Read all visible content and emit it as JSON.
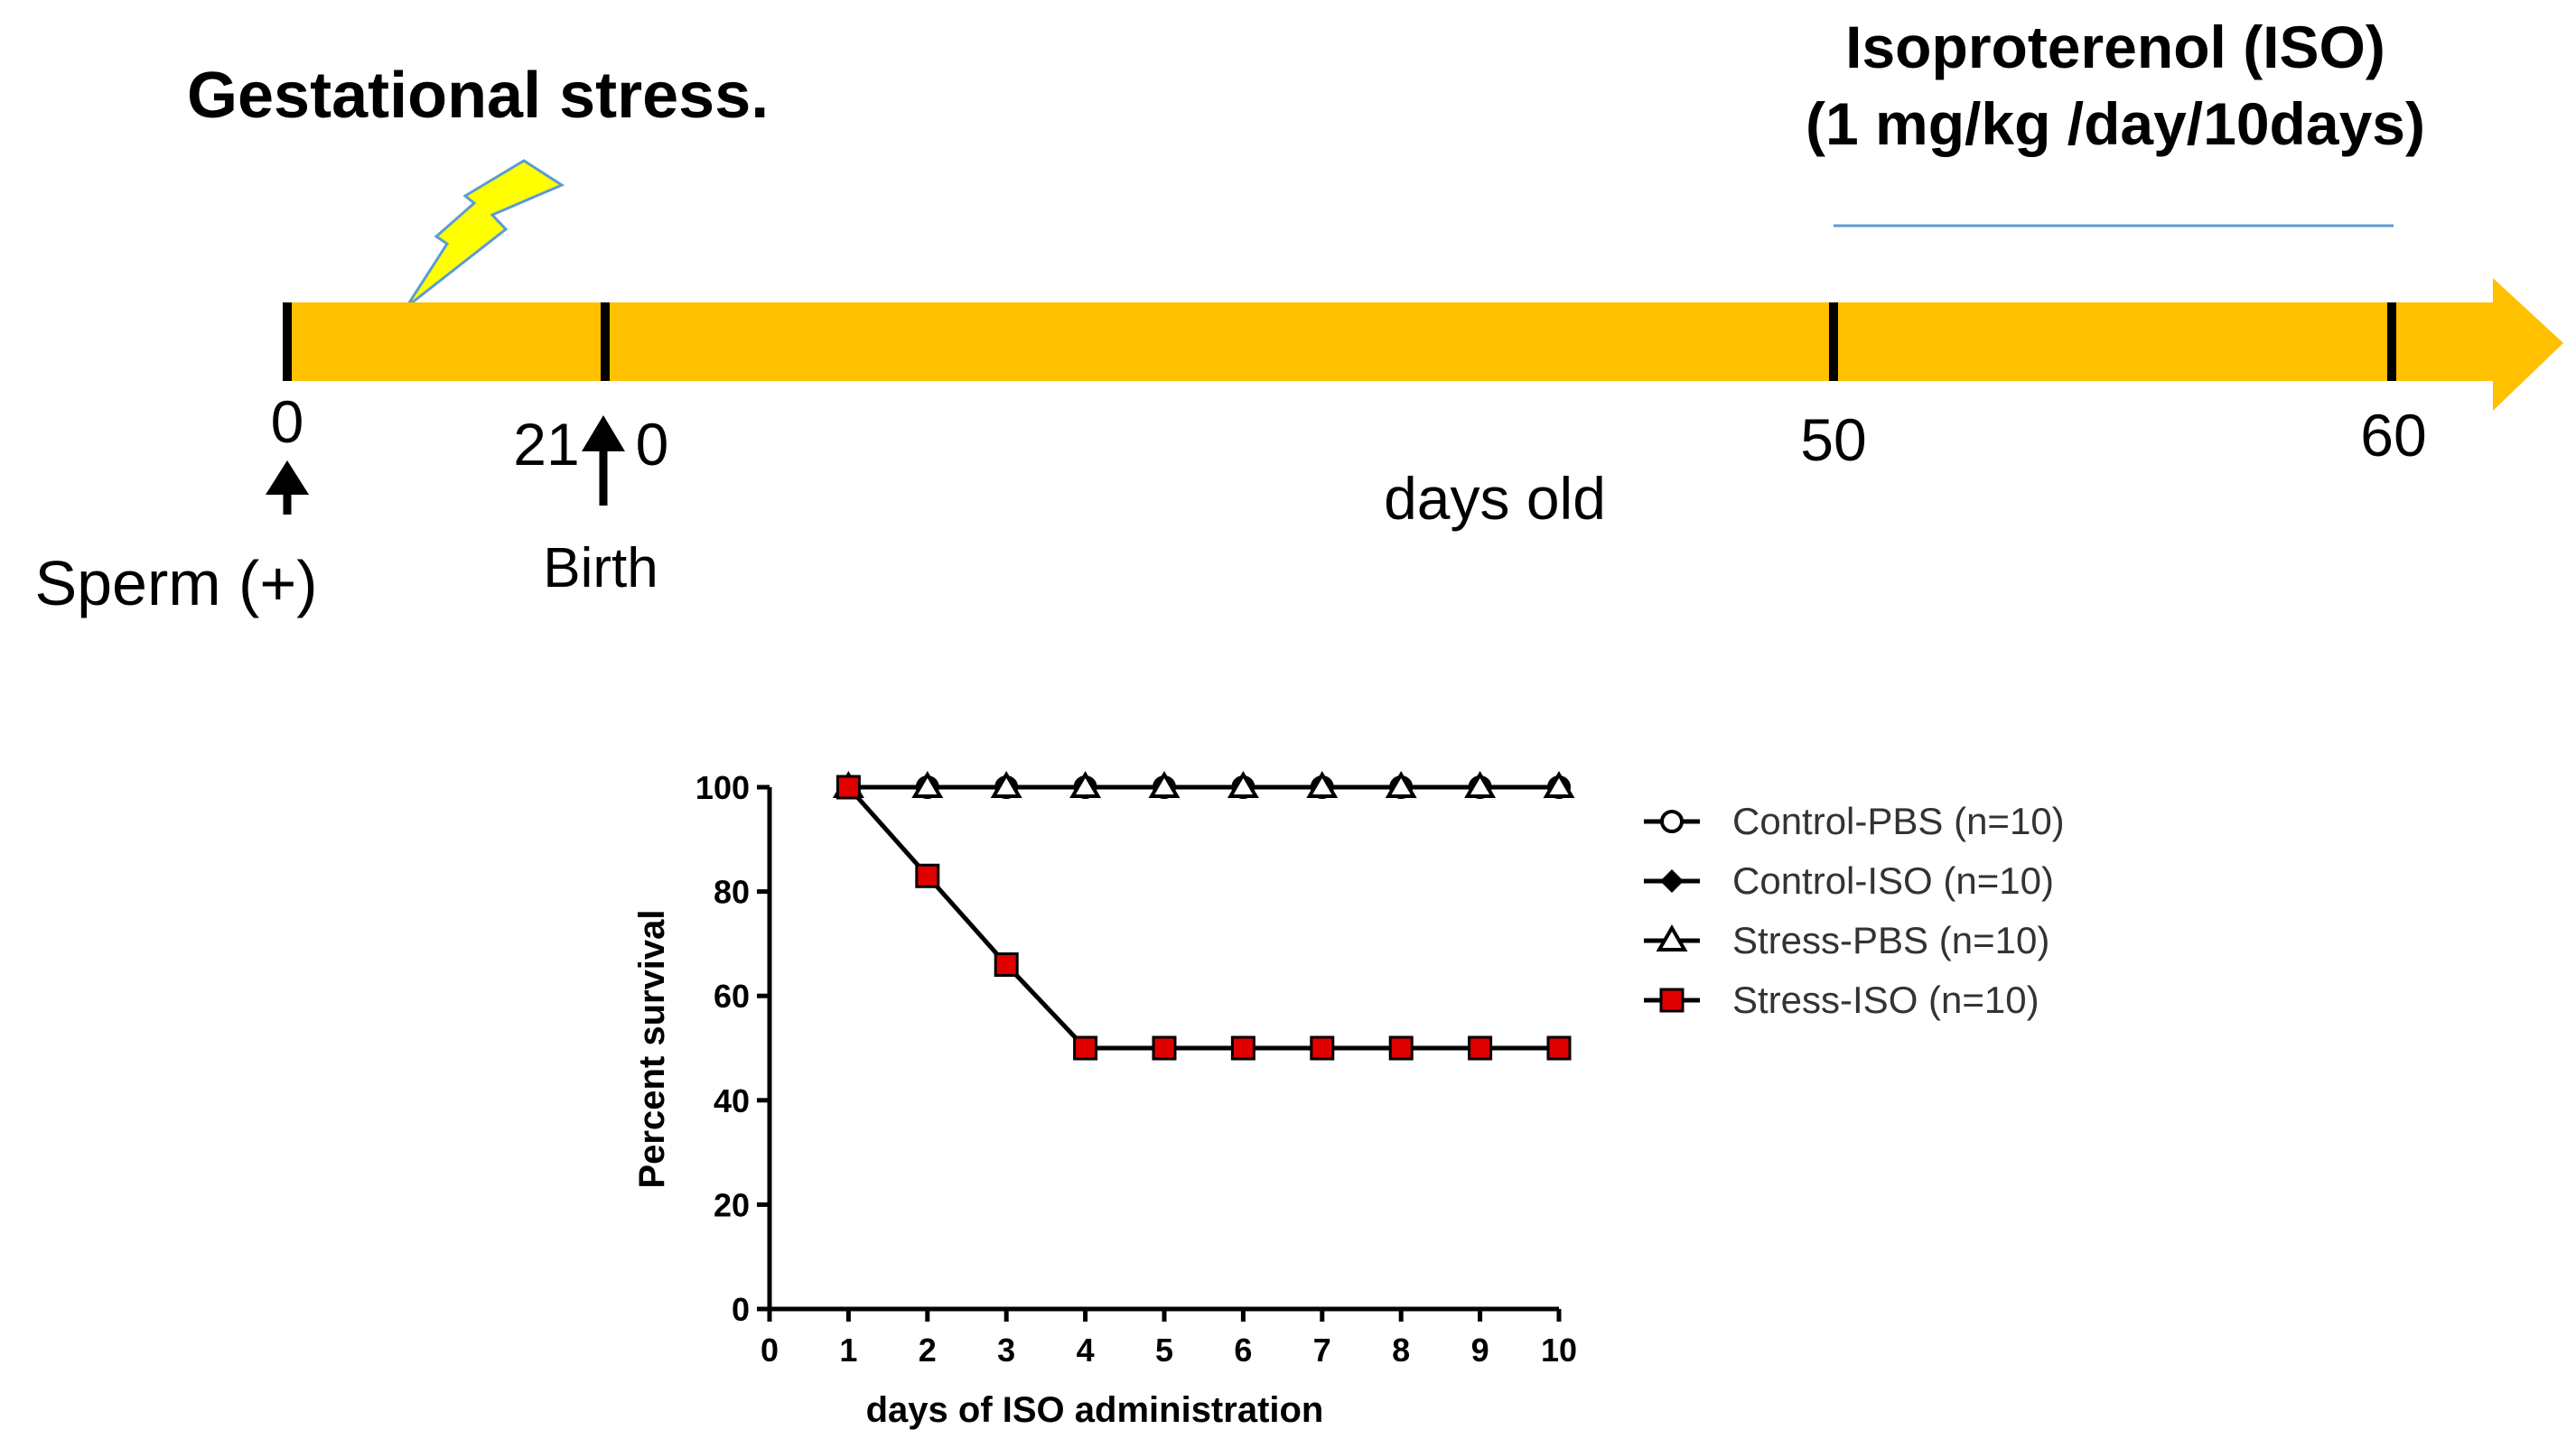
{
  "timeline": {
    "title": "Gestational stress.",
    "iso_line1": "Isoproterenol  (ISO)",
    "iso_line2": "(1 mg/kg  /day/10days)",
    "ticks": [
      "0",
      "21",
      "0",
      "50",
      "60"
    ],
    "axis_label": "days old",
    "sperm_label": "Sperm (+)",
    "birth_label": "Birth",
    "colors": {
      "bar": "#FFC000",
      "bolt": "#FFFF00",
      "bolt_edge": "#5B9BD5",
      "iso_period": "#5B9BD5"
    }
  },
  "chart_data": {
    "type": "line",
    "title": "",
    "xlabel": "days of ISO administration",
    "ylabel": "Percent survival",
    "xlim": [
      0,
      10
    ],
    "ylim": [
      0,
      100
    ],
    "x_ticks": [
      "0",
      "1",
      "2",
      "3",
      "4",
      "5",
      "6",
      "7",
      "8",
      "9",
      "10"
    ],
    "y_ticks": [
      "0",
      "20",
      "40",
      "60",
      "80",
      "100"
    ],
    "x": [
      1,
      2,
      3,
      4,
      5,
      6,
      7,
      8,
      9,
      10
    ],
    "series": [
      {
        "name": "Control-PBS (n=10)",
        "marker": "open-circle",
        "values": [
          100,
          100,
          100,
          100,
          100,
          100,
          100,
          100,
          100,
          100
        ]
      },
      {
        "name": "Control-ISO (n=10)",
        "marker": "filled-diamond",
        "values": [
          100,
          100,
          100,
          100,
          100,
          100,
          100,
          100,
          100,
          100
        ]
      },
      {
        "name": "Stress-PBS (n=10)",
        "marker": "open-triangle",
        "values": [
          100,
          100,
          100,
          100,
          100,
          100,
          100,
          100,
          100,
          100
        ]
      },
      {
        "name": "Stress-ISO (n=10)",
        "marker": "red-square",
        "color": "#E00000",
        "values": [
          100,
          83,
          66,
          50,
          50,
          50,
          50,
          50,
          50,
          50
        ]
      }
    ],
    "legend_position": "right"
  }
}
